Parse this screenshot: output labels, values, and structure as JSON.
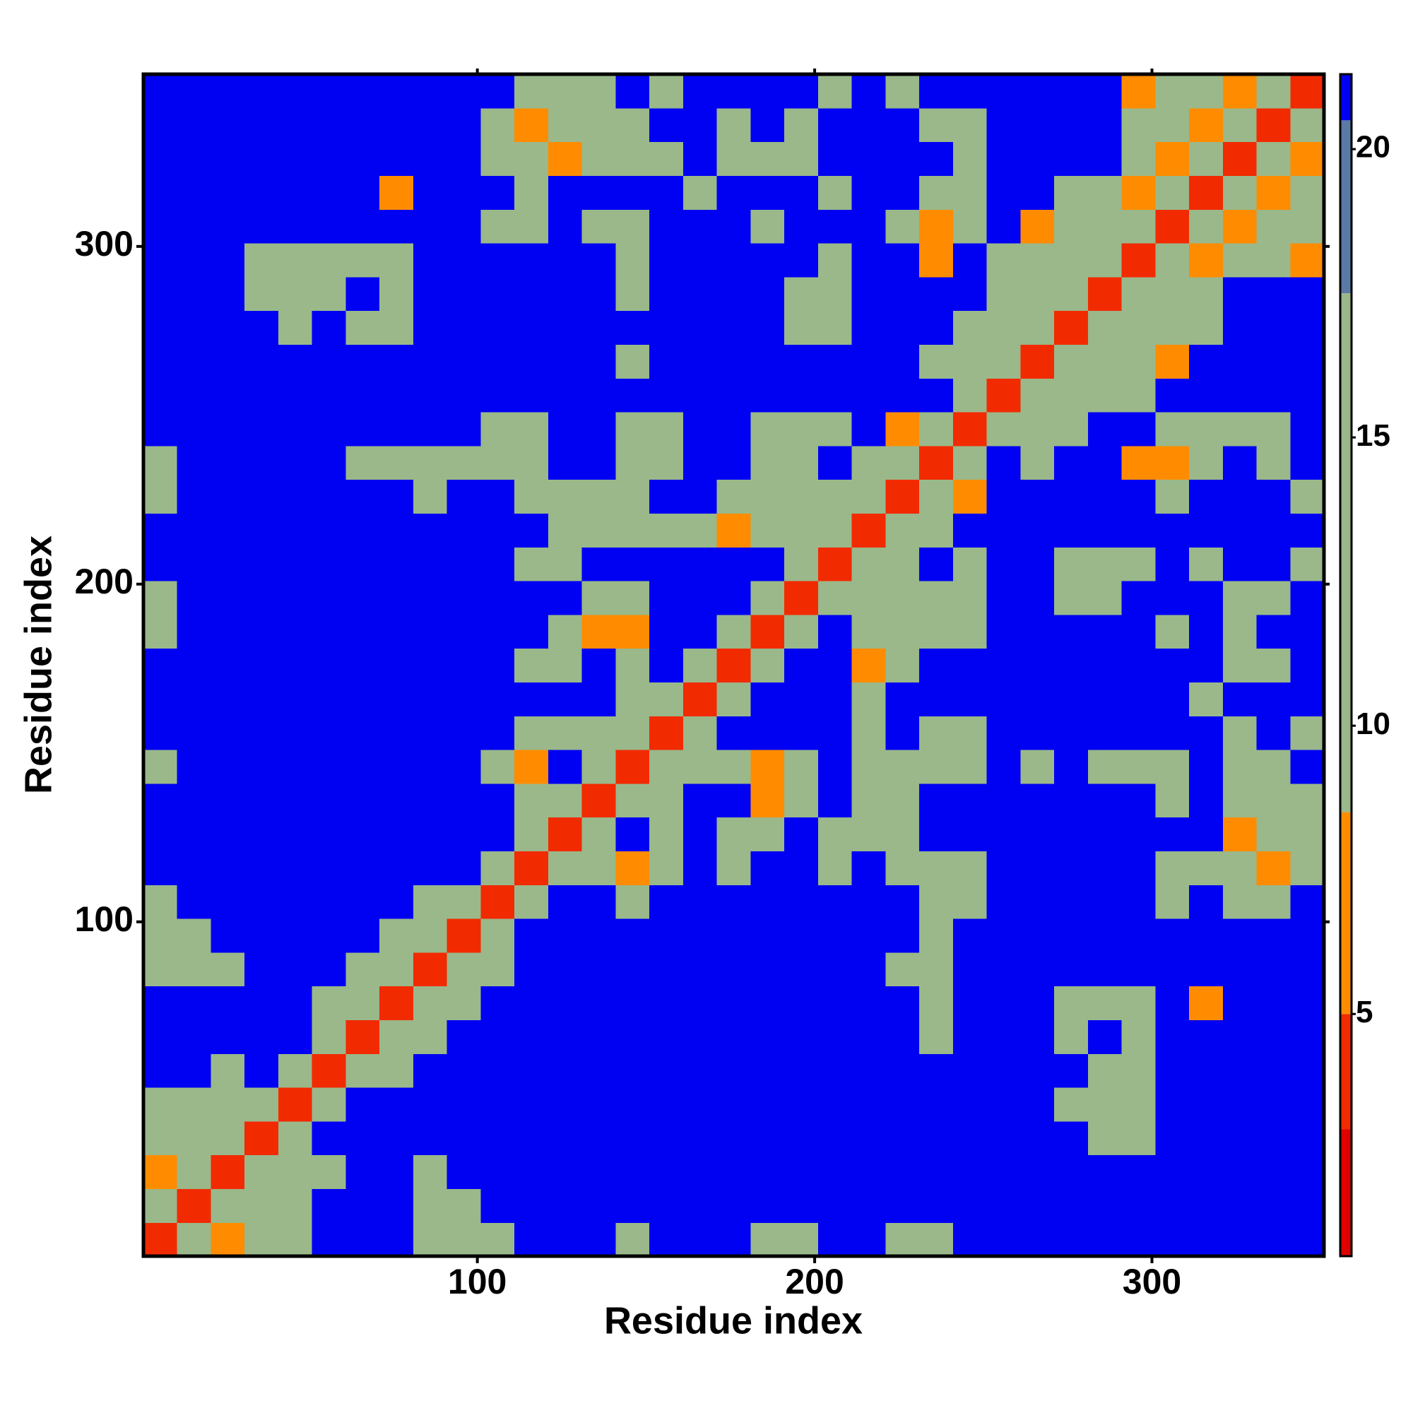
{
  "chart_data": {
    "type": "heatmap",
    "xlabel": "Residue index",
    "ylabel": "Residue index",
    "xlim": [
      1,
      351
    ],
    "ylim": [
      1,
      351
    ],
    "xticks": [
      100,
      200,
      300
    ],
    "yticks": [
      100,
      200,
      300
    ],
    "x_edges": [
      1,
      11,
      21,
      31,
      41,
      51,
      61,
      71,
      81,
      91,
      101,
      111,
      121,
      131,
      141,
      151,
      161,
      171,
      181,
      191,
      201,
      211,
      221,
      231,
      241,
      251,
      261,
      271,
      281,
      291,
      301,
      311,
      321,
      331,
      341,
      351
    ],
    "y_edges": [
      1,
      11,
      21,
      31,
      41,
      51,
      61,
      71,
      81,
      91,
      101,
      111,
      121,
      131,
      141,
      151,
      161,
      171,
      181,
      191,
      201,
      211,
      221,
      231,
      241,
      251,
      261,
      271,
      281,
      291,
      301,
      311,
      321,
      331,
      341,
      351
    ],
    "zlim": [
      0.8,
      21.3
    ],
    "zticks": [
      5,
      10,
      15,
      20
    ],
    "color_steps": [
      {
        "value": 3,
        "color": "#e00000"
      },
      {
        "value": 5,
        "color": "#f22a00"
      },
      {
        "value": 8.5,
        "color": "#ff8c00"
      },
      {
        "value": 17.5,
        "color": "#9ab88a"
      },
      {
        "value": 20.5,
        "color": "#5a7aa6"
      },
      {
        "value": 21.3,
        "color": "#0000f2"
      }
    ],
    "z": [
      [
        4,
        11,
        7,
        13,
        13,
        21,
        21,
        21,
        13,
        13,
        13,
        21,
        21,
        21,
        13,
        21,
        21,
        21,
        13,
        13,
        21,
        21,
        13,
        13,
        21,
        21,
        21,
        21,
        21,
        21,
        21,
        21,
        21,
        21,
        21
      ],
      [
        11,
        4,
        11,
        13,
        13,
        21,
        21,
        21,
        13,
        13,
        21,
        21,
        21,
        21,
        21,
        21,
        21,
        21,
        21,
        21,
        21,
        21,
        21,
        21,
        21,
        21,
        21,
        21,
        21,
        21,
        21,
        21,
        21,
        21,
        21
      ],
      [
        7,
        11,
        4,
        11,
        13,
        13,
        21,
        21,
        13,
        21,
        21,
        21,
        21,
        21,
        21,
        21,
        21,
        21,
        21,
        21,
        21,
        21,
        21,
        21,
        21,
        21,
        21,
        21,
        21,
        21,
        21,
        21,
        21,
        21,
        21
      ],
      [
        13,
        13,
        11,
        4,
        11,
        21,
        21,
        21,
        21,
        21,
        21,
        21,
        21,
        21,
        21,
        21,
        21,
        21,
        21,
        21,
        21,
        21,
        21,
        21,
        21,
        21,
        21,
        21,
        13,
        13,
        21,
        21,
        21,
        21,
        21
      ],
      [
        13,
        13,
        13,
        11,
        4,
        11,
        21,
        21,
        21,
        21,
        21,
        21,
        21,
        21,
        21,
        21,
        21,
        21,
        21,
        21,
        21,
        21,
        21,
        21,
        21,
        21,
        21,
        13,
        13,
        13,
        21,
        21,
        21,
        21,
        21
      ],
      [
        21,
        21,
        13,
        21,
        11,
        4,
        11,
        13,
        21,
        21,
        21,
        21,
        21,
        21,
        21,
        21,
        21,
        21,
        21,
        21,
        21,
        21,
        21,
        21,
        21,
        21,
        21,
        21,
        13,
        13,
        21,
        21,
        21,
        21,
        21
      ],
      [
        21,
        21,
        21,
        21,
        21,
        11,
        4,
        11,
        13,
        21,
        21,
        21,
        21,
        21,
        21,
        21,
        21,
        21,
        21,
        21,
        21,
        21,
        21,
        13,
        21,
        21,
        21,
        13,
        21,
        13,
        21,
        21,
        21,
        21,
        21
      ],
      [
        21,
        21,
        21,
        21,
        21,
        13,
        11,
        4,
        11,
        13,
        21,
        21,
        21,
        21,
        21,
        21,
        21,
        21,
        21,
        21,
        21,
        21,
        21,
        13,
        21,
        21,
        21,
        13,
        13,
        13,
        21,
        7,
        21,
        21,
        21
      ],
      [
        13,
        13,
        13,
        21,
        21,
        21,
        13,
        11,
        4,
        11,
        13,
        21,
        21,
        21,
        21,
        21,
        21,
        21,
        21,
        21,
        21,
        21,
        13,
        13,
        21,
        21,
        21,
        21,
        21,
        21,
        21,
        21,
        21,
        21,
        21
      ],
      [
        13,
        13,
        21,
        21,
        21,
        21,
        21,
        13,
        11,
        4,
        11,
        21,
        21,
        21,
        21,
        21,
        21,
        21,
        21,
        21,
        21,
        21,
        21,
        13,
        21,
        21,
        21,
        21,
        21,
        21,
        21,
        21,
        21,
        21,
        21
      ],
      [
        13,
        21,
        21,
        21,
        21,
        21,
        21,
        21,
        13,
        11,
        4,
        11,
        21,
        21,
        13,
        21,
        21,
        21,
        21,
        21,
        21,
        21,
        21,
        13,
        13,
        21,
        21,
        21,
        21,
        21,
        13,
        21,
        13,
        13,
        21
      ],
      [
        21,
        21,
        21,
        21,
        21,
        21,
        21,
        21,
        21,
        21,
        11,
        4,
        11,
        13,
        7,
        13,
        21,
        13,
        21,
        21,
        13,
        21,
        13,
        13,
        13,
        21,
        21,
        21,
        21,
        21,
        13,
        13,
        13,
        7,
        13
      ],
      [
        21,
        21,
        21,
        21,
        21,
        21,
        21,
        21,
        21,
        21,
        21,
        11,
        4,
        11,
        21,
        13,
        21,
        13,
        13,
        21,
        13,
        13,
        13,
        21,
        21,
        21,
        21,
        21,
        21,
        21,
        21,
        21,
        7,
        13,
        13
      ],
      [
        21,
        21,
        21,
        21,
        21,
        21,
        21,
        21,
        21,
        21,
        21,
        13,
        11,
        4,
        11,
        13,
        21,
        21,
        7,
        13,
        21,
        13,
        13,
        21,
        21,
        21,
        21,
        21,
        21,
        21,
        13,
        21,
        13,
        13,
        13
      ],
      [
        13,
        21,
        21,
        21,
        21,
        21,
        21,
        21,
        21,
        21,
        13,
        7,
        21,
        11,
        4,
        11,
        13,
        13,
        7,
        13,
        21,
        13,
        13,
        13,
        13,
        21,
        13,
        21,
        13,
        13,
        13,
        21,
        13,
        13,
        21
      ],
      [
        21,
        21,
        21,
        21,
        21,
        21,
        21,
        21,
        21,
        21,
        21,
        13,
        13,
        13,
        11,
        4,
        11,
        21,
        21,
        21,
        21,
        13,
        21,
        13,
        13,
        21,
        21,
        21,
        21,
        21,
        21,
        21,
        13,
        21,
        13
      ],
      [
        21,
        21,
        21,
        21,
        21,
        21,
        21,
        21,
        21,
        21,
        21,
        21,
        21,
        21,
        13,
        11,
        4,
        11,
        21,
        21,
        21,
        13,
        21,
        21,
        21,
        21,
        21,
        21,
        21,
        21,
        21,
        13,
        21,
        21,
        21
      ],
      [
        21,
        21,
        21,
        21,
        21,
        21,
        21,
        21,
        21,
        21,
        21,
        13,
        13,
        21,
        13,
        21,
        11,
        4,
        11,
        21,
        21,
        7,
        13,
        21,
        21,
        21,
        21,
        21,
        21,
        21,
        21,
        21,
        13,
        13,
        21
      ],
      [
        13,
        21,
        21,
        21,
        21,
        21,
        21,
        21,
        21,
        21,
        21,
        21,
        13,
        7,
        7,
        21,
        21,
        11,
        4,
        11,
        21,
        13,
        13,
        13,
        13,
        21,
        21,
        21,
        21,
        21,
        13,
        21,
        13,
        21,
        21
      ],
      [
        13,
        21,
        21,
        21,
        21,
        21,
        21,
        21,
        21,
        21,
        21,
        21,
        21,
        13,
        13,
        21,
        21,
        21,
        11,
        4,
        11,
        13,
        13,
        13,
        13,
        21,
        21,
        13,
        13,
        21,
        21,
        21,
        13,
        13,
        21
      ],
      [
        21,
        21,
        21,
        21,
        21,
        21,
        21,
        21,
        21,
        21,
        21,
        13,
        13,
        21,
        21,
        21,
        21,
        21,
        21,
        11,
        4,
        11,
        13,
        21,
        13,
        21,
        21,
        13,
        13,
        13,
        21,
        13,
        21,
        21,
        13
      ],
      [
        21,
        21,
        21,
        21,
        21,
        21,
        21,
        21,
        21,
        21,
        21,
        21,
        13,
        13,
        13,
        13,
        13,
        7,
        13,
        13,
        11,
        4,
        11,
        13,
        21,
        21,
        21,
        21,
        21,
        21,
        21,
        21,
        21,
        21,
        21
      ],
      [
        13,
        21,
        21,
        21,
        21,
        21,
        21,
        21,
        13,
        21,
        21,
        13,
        13,
        13,
        13,
        21,
        21,
        13,
        13,
        13,
        13,
        11,
        4,
        11,
        7,
        21,
        21,
        21,
        21,
        21,
        13,
        21,
        21,
        21,
        13
      ],
      [
        13,
        21,
        21,
        21,
        21,
        21,
        13,
        13,
        13,
        13,
        13,
        13,
        21,
        21,
        13,
        13,
        21,
        21,
        13,
        13,
        21,
        13,
        11,
        4,
        11,
        21,
        13,
        21,
        21,
        7,
        7,
        13,
        21,
        13,
        21
      ],
      [
        21,
        21,
        21,
        21,
        21,
        21,
        21,
        21,
        21,
        21,
        13,
        13,
        21,
        21,
        13,
        13,
        21,
        21,
        13,
        13,
        13,
        21,
        7,
        11,
        4,
        11,
        13,
        13,
        21,
        21,
        13,
        13,
        13,
        13,
        21
      ],
      [
        21,
        21,
        21,
        21,
        21,
        21,
        21,
        21,
        21,
        21,
        21,
        21,
        21,
        21,
        21,
        21,
        21,
        21,
        21,
        21,
        21,
        21,
        21,
        21,
        11,
        4,
        11,
        13,
        13,
        13,
        21,
        21,
        21,
        21,
        21
      ],
      [
        21,
        21,
        21,
        21,
        21,
        21,
        21,
        21,
        21,
        21,
        21,
        21,
        21,
        21,
        13,
        21,
        21,
        21,
        21,
        21,
        21,
        21,
        21,
        13,
        13,
        11,
        4,
        11,
        13,
        13,
        7,
        21,
        21,
        21,
        21
      ],
      [
        21,
        21,
        21,
        21,
        13,
        21,
        13,
        13,
        21,
        21,
        21,
        21,
        21,
        21,
        21,
        21,
        21,
        21,
        21,
        13,
        13,
        21,
        21,
        21,
        13,
        13,
        11,
        4,
        11,
        13,
        13,
        13,
        21,
        21,
        21
      ],
      [
        21,
        21,
        21,
        13,
        13,
        13,
        21,
        13,
        21,
        21,
        21,
        21,
        21,
        21,
        13,
        21,
        21,
        21,
        21,
        13,
        13,
        21,
        21,
        21,
        21,
        13,
        13,
        11,
        4,
        11,
        13,
        13,
        21,
        21,
        21
      ],
      [
        21,
        21,
        21,
        13,
        13,
        13,
        13,
        13,
        21,
        21,
        21,
        21,
        21,
        21,
        13,
        21,
        21,
        21,
        21,
        21,
        13,
        21,
        21,
        7,
        21,
        13,
        13,
        13,
        11,
        4,
        11,
        7,
        13,
        13,
        7
      ],
      [
        21,
        21,
        21,
        21,
        21,
        21,
        21,
        21,
        21,
        21,
        13,
        13,
        21,
        13,
        13,
        21,
        21,
        21,
        13,
        21,
        21,
        21,
        13,
        7,
        13,
        21,
        7,
        13,
        13,
        11,
        4,
        11,
        7,
        13,
        13
      ],
      [
        21,
        21,
        21,
        21,
        21,
        21,
        21,
        7,
        21,
        21,
        21,
        13,
        21,
        21,
        21,
        21,
        13,
        21,
        21,
        21,
        13,
        21,
        21,
        13,
        13,
        21,
        21,
        13,
        13,
        7,
        11,
        4,
        11,
        7,
        13
      ],
      [
        21,
        21,
        21,
        21,
        21,
        21,
        21,
        21,
        21,
        21,
        13,
        13,
        7,
        13,
        13,
        13,
        21,
        13,
        13,
        13,
        21,
        21,
        21,
        21,
        13,
        21,
        21,
        21,
        21,
        13,
        7,
        11,
        4,
        11,
        7
      ],
      [
        21,
        21,
        21,
        21,
        21,
        21,
        21,
        21,
        21,
        21,
        13,
        7,
        13,
        13,
        13,
        21,
        21,
        13,
        21,
        13,
        21,
        21,
        21,
        13,
        13,
        21,
        21,
        21,
        21,
        13,
        13,
        7,
        11,
        4,
        11
      ],
      [
        21,
        21,
        21,
        21,
        21,
        21,
        21,
        21,
        21,
        21,
        21,
        13,
        13,
        13,
        21,
        13,
        21,
        21,
        21,
        21,
        13,
        21,
        13,
        21,
        21,
        21,
        21,
        21,
        21,
        7,
        13,
        13,
        7,
        11,
        4
      ]
    ]
  }
}
